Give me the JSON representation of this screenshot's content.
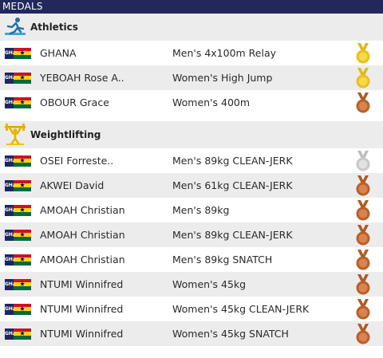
{
  "header": {
    "title": "MEDALS"
  },
  "colors": {
    "header_bg": "#22285a",
    "gold": "#e8c020",
    "silver": "#c8c8c8",
    "bronze": "#b8602a"
  },
  "sports": [
    {
      "name": "Athletics",
      "icon": "runner-icon",
      "rows": [
        {
          "country_code": "GHA",
          "athlete": "GHANA",
          "event": "Men's 4x100m Relay",
          "medal": "gold"
        },
        {
          "country_code": "GHA",
          "athlete": "YEBOAH Rose A..",
          "event": "Women's High Jump",
          "medal": "gold"
        },
        {
          "country_code": "GHA",
          "athlete": "OBOUR Grace",
          "event": "Women's 400m",
          "medal": "bronze"
        }
      ]
    },
    {
      "name": "Weightlifting",
      "icon": "weightlifter-icon",
      "rows": [
        {
          "country_code": "GHA",
          "athlete": "OSEI Forreste..",
          "event": "Men's 89kg CLEAN-JERK",
          "medal": "silver"
        },
        {
          "country_code": "GHA",
          "athlete": "AKWEI David",
          "event": "Men's 61kg CLEAN-JERK",
          "medal": "bronze"
        },
        {
          "country_code": "GHA",
          "athlete": "AMOAH Christian",
          "event": "Men's 89kg",
          "medal": "bronze"
        },
        {
          "country_code": "GHA",
          "athlete": "AMOAH Christian",
          "event": "Men's 89kg CLEAN-JERK",
          "medal": "bronze"
        },
        {
          "country_code": "GHA",
          "athlete": "AMOAH Christian",
          "event": "Men's 89kg SNATCH",
          "medal": "bronze"
        },
        {
          "country_code": "GHA",
          "athlete": "NTUMI Winnifred",
          "event": "Women's 45kg",
          "medal": "bronze"
        },
        {
          "country_code": "GHA",
          "athlete": "NTUMI Winnifred",
          "event": "Women's 45kg CLEAN-JERK",
          "medal": "bronze"
        },
        {
          "country_code": "GHA",
          "athlete": "NTUMI Winnifred",
          "event": "Women's 45kg SNATCH",
          "medal": "bronze"
        }
      ]
    }
  ]
}
